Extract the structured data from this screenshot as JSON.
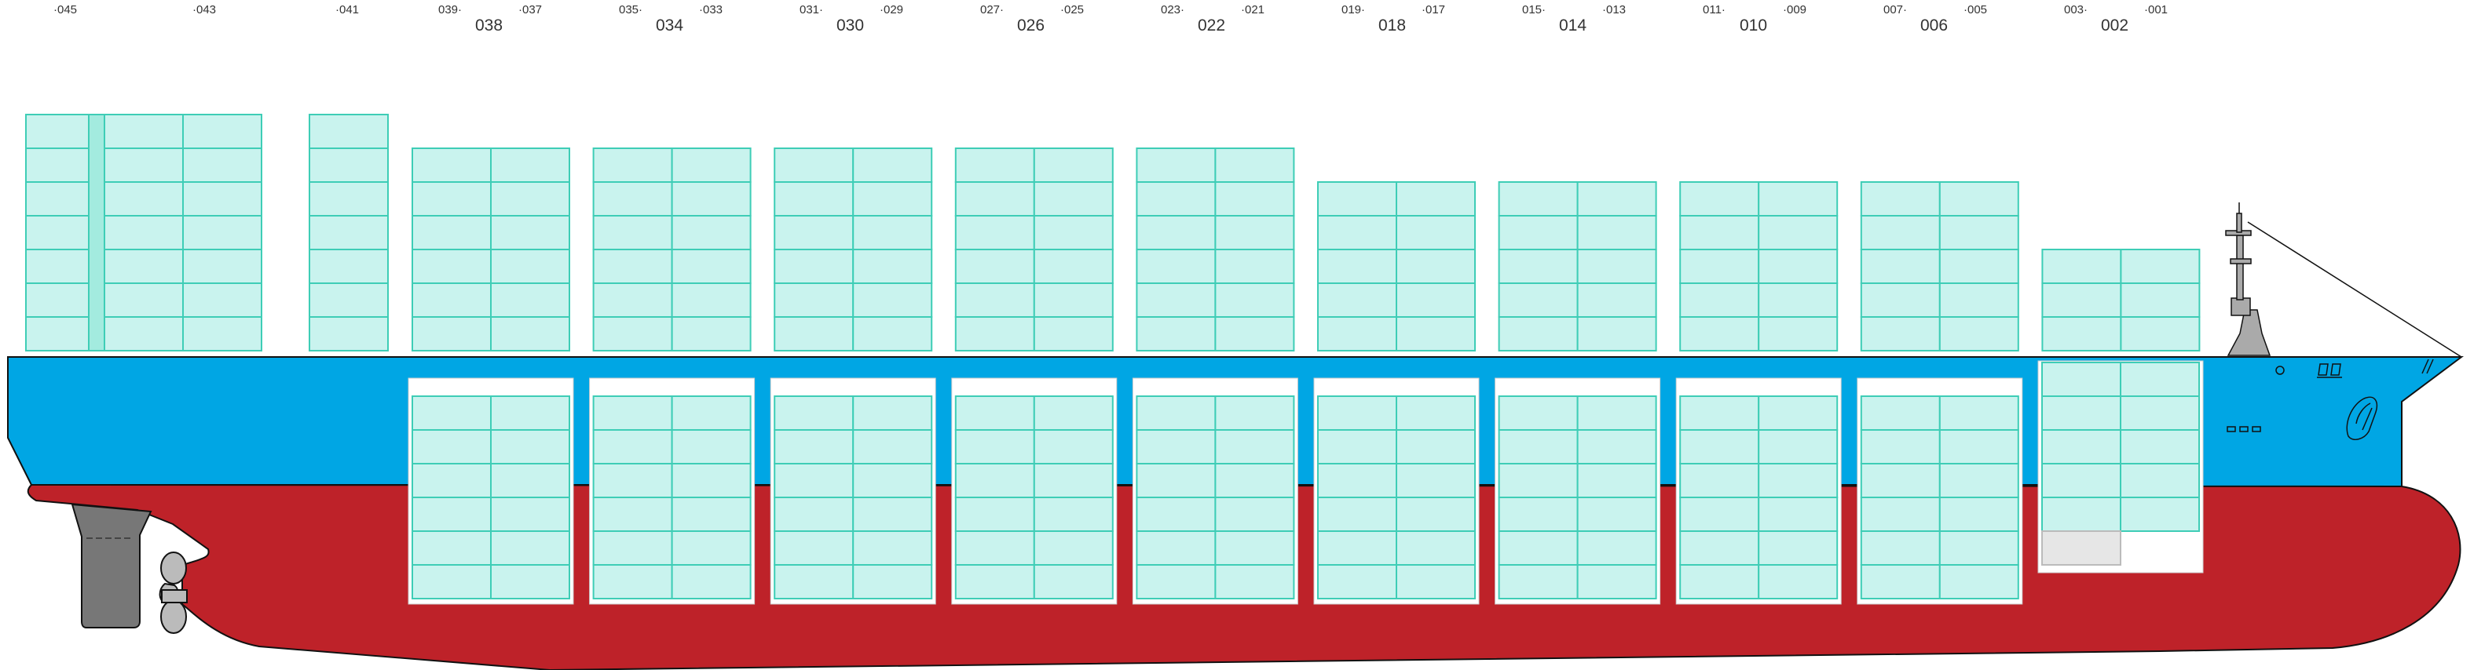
{
  "bay_labels": {
    "top_row": [
      "·045",
      "·043",
      "·041",
      "039·",
      "·037",
      "035·",
      "·033",
      "031·",
      "·029",
      "027·",
      "·025",
      "023·",
      "·021",
      "019·",
      "·017",
      "015·",
      "·013",
      "011·",
      "·009",
      "007·",
      "·005",
      "003·",
      "·001"
    ],
    "big": [
      "038",
      "034",
      "030",
      "026",
      "022",
      "018",
      "014",
      "010",
      "006",
      "002"
    ]
  },
  "hull": {
    "topside_color": "#00a6e4",
    "bottom_color": "#be2229",
    "outline_color": "#111111"
  },
  "containers": {
    "fill_color": "#c9f3ee",
    "line_color": "#3ecdb6",
    "highlight_color": "#a3ebdf",
    "empty_slot_color": "#e6e6e6",
    "hold_well_color": "#ffffff"
  },
  "machinery": {
    "rudder_color": "#777777",
    "propeller_color": "#bbbbbb",
    "superstructure_color": "#aaaaaa"
  }
}
